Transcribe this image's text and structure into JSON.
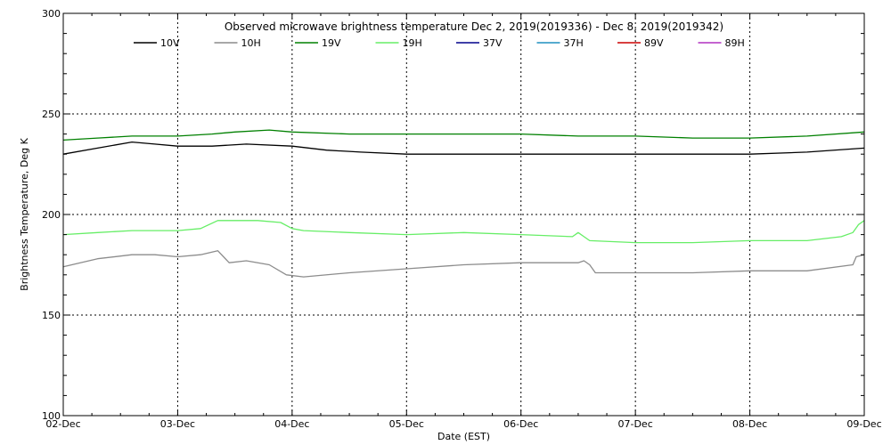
{
  "chart_data": {
    "type": "line",
    "title": "Observed microwave brightness temperature Dec  2, 2019(2019336) - Dec  8, 2019(2019342)",
    "xlabel": "Date (EST)",
    "ylabel": "Brightness Temperature, Deg K",
    "xlim": [
      0,
      7
    ],
    "ylim": [
      100,
      300
    ],
    "x_ticks": [
      0,
      1,
      2,
      3,
      4,
      5,
      6,
      7
    ],
    "x_tick_labels": [
      "02-Dec",
      "03-Dec",
      "04-Dec",
      "05-Dec",
      "06-Dec",
      "07-Dec",
      "08-Dec",
      "09-Dec"
    ],
    "y_ticks": [
      100,
      150,
      200,
      250,
      300
    ],
    "y_tick_labels": [
      "100",
      "150",
      "200",
      "250",
      "300"
    ],
    "grid": "dotted",
    "legend": "top",
    "series": [
      {
        "name": "10V",
        "color": "#000000",
        "x": [
          0,
          0.3,
          0.6,
          0.8,
          1.0,
          1.3,
          1.6,
          2.0,
          2.3,
          2.6,
          3.0,
          3.5,
          4.0,
          4.5,
          5.0,
          5.5,
          6.0,
          6.5,
          7.0
        ],
        "values": [
          230,
          233,
          236,
          235,
          234,
          234,
          235,
          234,
          232,
          231,
          230,
          230,
          230,
          230,
          230,
          230,
          230,
          231,
          233
        ]
      },
      {
        "name": "10H",
        "color": "#8c8c8c",
        "x": [
          0,
          0.3,
          0.6,
          0.8,
          1.0,
          1.2,
          1.35,
          1.45,
          1.6,
          1.8,
          1.95,
          2.1,
          2.5,
          3.0,
          3.5,
          4.0,
          4.5,
          4.55,
          4.6,
          4.65,
          5.0,
          5.5,
          6.0,
          6.5,
          6.9,
          6.93,
          7.0
        ],
        "values": [
          174,
          178,
          180,
          180,
          179,
          180,
          182,
          176,
          177,
          175,
          170,
          169,
          171,
          173,
          175,
          176,
          176,
          177,
          175,
          171,
          171,
          171,
          172,
          172,
          175,
          179,
          180
        ]
      },
      {
        "name": "19V",
        "color": "#008000",
        "x": [
          0,
          0.3,
          0.6,
          1.0,
          1.3,
          1.5,
          1.8,
          2.0,
          2.5,
          3.0,
          3.5,
          4.0,
          4.5,
          5.0,
          5.5,
          6.0,
          6.5,
          7.0
        ],
        "values": [
          237,
          238,
          239,
          239,
          240,
          241,
          242,
          241,
          240,
          240,
          240,
          240,
          239,
          239,
          238,
          238,
          239,
          241
        ]
      },
      {
        "name": "19H",
        "color": "#66ee66",
        "x": [
          0,
          0.3,
          0.6,
          1.0,
          1.2,
          1.35,
          1.5,
          1.7,
          1.9,
          2.0,
          2.1,
          2.5,
          3.0,
          3.5,
          4.0,
          4.45,
          4.5,
          4.55,
          4.6,
          5.0,
          5.5,
          6.0,
          6.5,
          6.8,
          6.9,
          6.95,
          7.0
        ],
        "values": [
          190,
          191,
          192,
          192,
          193,
          197,
          197,
          197,
          196,
          193,
          192,
          191,
          190,
          191,
          190,
          189,
          191,
          189,
          187,
          186,
          186,
          187,
          187,
          189,
          191,
          195,
          197
        ]
      },
      {
        "name": "37V",
        "color": "#00008b",
        "x": [],
        "values": []
      },
      {
        "name": "37H",
        "color": "#1f8fbf",
        "x": [],
        "values": []
      },
      {
        "name": "89V",
        "color": "#cc0000",
        "x": [],
        "values": []
      },
      {
        "name": "89H",
        "color": "#b030c0",
        "x": [],
        "values": []
      }
    ]
  }
}
